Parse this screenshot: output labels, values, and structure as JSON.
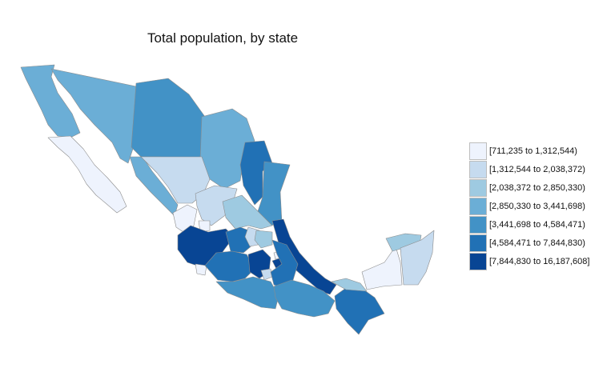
{
  "title": "Total population, by state",
  "colors": [
    "#eef3fd",
    "#c6dbef",
    "#9ecae1",
    "#6baed6",
    "#4292c6",
    "#2171b5",
    "#084594"
  ],
  "legend": [
    "[711,235 to 1,312,544)",
    "[1,312,544 to 2,038,372)",
    "[2,038,372 to 2,850,330)",
    "[2,850,330 to 3,441,698)",
    "[3,441,698 to 4,584,471)",
    "[4,584,471 to 7,844,830)",
    "[7,844,830 to 16,187,608]"
  ],
  "states": [
    {
      "name": "Baja California",
      "cls": 3
    },
    {
      "name": "Baja California Sur",
      "cls": 0
    },
    {
      "name": "Sonora",
      "cls": 3
    },
    {
      "name": "Chihuahua",
      "cls": 4
    },
    {
      "name": "Coahuila",
      "cls": 3
    },
    {
      "name": "Nuevo León",
      "cls": 5
    },
    {
      "name": "Tamaulipas",
      "cls": 4
    },
    {
      "name": "Sinaloa",
      "cls": 3
    },
    {
      "name": "Durango",
      "cls": 1
    },
    {
      "name": "Zacatecas",
      "cls": 1
    },
    {
      "name": "San Luis Potosí",
      "cls": 2
    },
    {
      "name": "Nayarit",
      "cls": 0
    },
    {
      "name": "Aguascalientes",
      "cls": 0
    },
    {
      "name": "Jalisco",
      "cls": 6
    },
    {
      "name": "Guanajuato",
      "cls": 5
    },
    {
      "name": "Querétaro",
      "cls": 1
    },
    {
      "name": "Hidalgo",
      "cls": 2
    },
    {
      "name": "Veracruz",
      "cls": 6
    },
    {
      "name": "Colima",
      "cls": 0
    },
    {
      "name": "Michoacán",
      "cls": 5
    },
    {
      "name": "Estado de México",
      "cls": 6
    },
    {
      "name": "Ciudad de México",
      "cls": 6
    },
    {
      "name": "Tlaxcala",
      "cls": 0
    },
    {
      "name": "Morelos",
      "cls": 1
    },
    {
      "name": "Puebla",
      "cls": 5
    },
    {
      "name": "Guerrero",
      "cls": 4
    },
    {
      "name": "Oaxaca",
      "cls": 4
    },
    {
      "name": "Chiapas",
      "cls": 5
    },
    {
      "name": "Tabasco",
      "cls": 2
    },
    {
      "name": "Campeche",
      "cls": 0
    },
    {
      "name": "Yucatán",
      "cls": 2
    },
    {
      "name": "Quintana Roo",
      "cls": 1
    }
  ]
}
